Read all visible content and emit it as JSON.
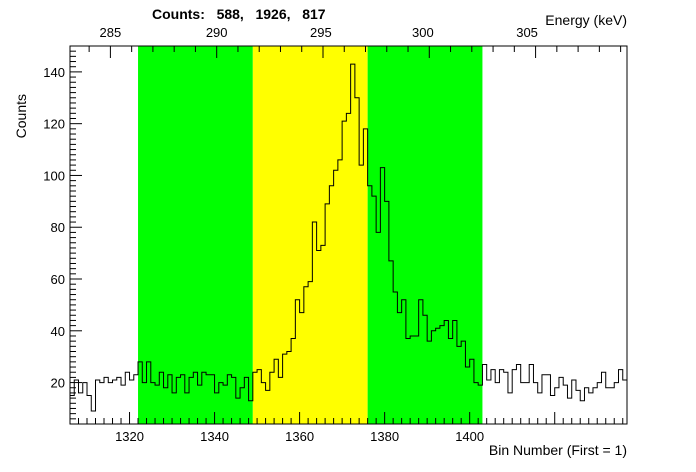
{
  "header": {
    "counts_label": "Counts:",
    "counts_values": [
      "588",
      "1926",
      "817"
    ]
  },
  "chart_data": {
    "type": "histogram",
    "xlabel": "Bin Number (First = 1)",
    "ylabel": "Counts",
    "x2label": "Energy (keV)",
    "xlim": [
      1306,
      1437
    ],
    "ylim": [
      4,
      150
    ],
    "xticks": [
      1320,
      1340,
      1360,
      1380,
      1400
    ],
    "yticks": [
      20,
      40,
      60,
      80,
      100,
      120,
      140
    ],
    "energy_ticks": [
      {
        "label": "285",
        "bin": 1315.5
      },
      {
        "label": "290",
        "bin": 1340.5
      },
      {
        "label": "295",
        "bin": 1365.0
      },
      {
        "label": "300",
        "bin": 1389.0
      },
      {
        "label": "305",
        "bin": 1413.5
      }
    ],
    "regions": [
      {
        "from": 1322,
        "to": 1349,
        "color": "#00ff00"
      },
      {
        "from": 1349,
        "to": 1376,
        "color": "#ffff00"
      },
      {
        "from": 1376,
        "to": 1403,
        "color": "#00ff00"
      }
    ],
    "bins_start": 1306,
    "counts": [
      15,
      21,
      16,
      20,
      15,
      9,
      21,
      20,
      22,
      20,
      21,
      22,
      19,
      24,
      21,
      23,
      28,
      20,
      28,
      20,
      19,
      24,
      18,
      23,
      16,
      22,
      23,
      16,
      22,
      24,
      19,
      24,
      23,
      23,
      16,
      20,
      19,
      23,
      22,
      14,
      18,
      22,
      13,
      24,
      25,
      20,
      17,
      24,
      29,
      22,
      31,
      32,
      37,
      52,
      47,
      57,
      59,
      82,
      71,
      73,
      89,
      96,
      102,
      106,
      121,
      124,
      143,
      130,
      104,
      118,
      96,
      92,
      78,
      103,
      90,
      67,
      55,
      47,
      52,
      37,
      38,
      38,
      52,
      46,
      36,
      40,
      41,
      42,
      44,
      37,
      44,
      34,
      36,
      26,
      29,
      20,
      19,
      27,
      21,
      25,
      20,
      25,
      24,
      16,
      25,
      27,
      20,
      20,
      27,
      20,
      16,
      23,
      23,
      15,
      18,
      22,
      19,
      14,
      21,
      17,
      13,
      18,
      16,
      18,
      20,
      24,
      18,
      18,
      20,
      25,
      21
    ]
  }
}
